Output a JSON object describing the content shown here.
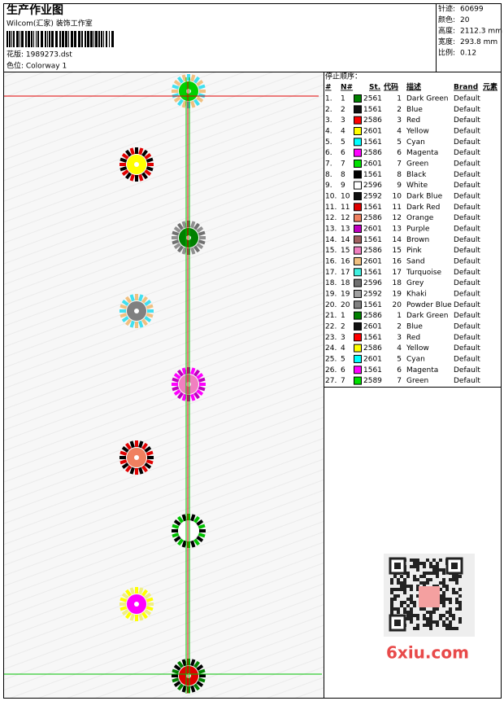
{
  "header": {
    "title": "生产作业图",
    "company": "Wilcom(汇家) 装饰工作室",
    "design_file": "花版:  1989273.dst",
    "colorway": "色位:  Colorway 1"
  },
  "stats": [
    {
      "label": "针迹:",
      "value": "60699"
    },
    {
      "label": "颜色:",
      "value": "20"
    },
    {
      "label": "高度:",
      "value": "2112.3 mm"
    },
    {
      "label": "宽度:",
      "value": "293.8 mm"
    },
    {
      "label": "比例:",
      "value": "0.12"
    }
  ],
  "table": {
    "title": "停止顺序：",
    "headers": [
      "#",
      "N#",
      "St.",
      "代码",
      "描述",
      "Brand",
      "元素"
    ],
    "rows": [
      {
        "index": "1.",
        "needle": "1",
        "color": "#008000",
        "stitch": "2561",
        "code": "1",
        "description": "Dark Green",
        "brand": "Default"
      },
      {
        "index": "2.",
        "needle": "2",
        "color": "#111111",
        "stitch": "1561",
        "code": "2",
        "description": "Blue",
        "brand": "Default"
      },
      {
        "index": "3.",
        "needle": "3",
        "color": "#ff0000",
        "stitch": "2586",
        "code": "3",
        "description": "Red",
        "brand": "Default"
      },
      {
        "index": "4.",
        "needle": "4",
        "color": "#ffff00",
        "stitch": "2601",
        "code": "4",
        "description": "Yellow",
        "brand": "Default"
      },
      {
        "index": "5.",
        "needle": "5",
        "color": "#00ffff",
        "stitch": "1561",
        "code": "5",
        "description": "Cyan",
        "brand": "Default"
      },
      {
        "index": "6.",
        "needle": "6",
        "color": "#ff00ff",
        "stitch": "2586",
        "code": "6",
        "description": "Magenta",
        "brand": "Default"
      },
      {
        "index": "7.",
        "needle": "7",
        "color": "#00e000",
        "stitch": "2601",
        "code": "7",
        "description": "Green",
        "brand": "Default"
      },
      {
        "index": "8.",
        "needle": "8",
        "color": "#000000",
        "stitch": "1561",
        "code": "8",
        "description": "Black",
        "brand": "Default"
      },
      {
        "index": "9.",
        "needle": "9",
        "color": "#ffffff",
        "stitch": "2596",
        "code": "9",
        "description": "White",
        "brand": "Default"
      },
      {
        "index": "10.",
        "needle": "10",
        "color": "#101010",
        "stitch": "2592",
        "code": "10",
        "description": "Dark Blue",
        "brand": "Default"
      },
      {
        "index": "11.",
        "needle": "11",
        "color": "#e00000",
        "stitch": "1561",
        "code": "11",
        "description": "Dark Red",
        "brand": "Default"
      },
      {
        "index": "12.",
        "needle": "12",
        "color": "#f08060",
        "stitch": "2586",
        "code": "12",
        "description": "Orange",
        "brand": "Default"
      },
      {
        "index": "13.",
        "needle": "13",
        "color": "#c000c0",
        "stitch": "2601",
        "code": "13",
        "description": "Purple",
        "brand": "Default"
      },
      {
        "index": "14.",
        "needle": "14",
        "color": "#a06060",
        "stitch": "1561",
        "code": "14",
        "description": "Brown",
        "brand": "Default"
      },
      {
        "index": "15.",
        "needle": "15",
        "color": "#f080c0",
        "stitch": "2586",
        "code": "15",
        "description": "Pink",
        "brand": "Default"
      },
      {
        "index": "16.",
        "needle": "16",
        "color": "#f0c080",
        "stitch": "2601",
        "code": "16",
        "description": "Sand",
        "brand": "Default"
      },
      {
        "index": "17.",
        "needle": "17",
        "color": "#40f0e0",
        "stitch": "1561",
        "code": "17",
        "description": "Turquoise",
        "brand": "Default"
      },
      {
        "index": "18.",
        "needle": "18",
        "color": "#707070",
        "stitch": "2596",
        "code": "18",
        "description": "Grey",
        "brand": "Default"
      },
      {
        "index": "19.",
        "needle": "19",
        "color": "#a0a0a0",
        "stitch": "2592",
        "code": "19",
        "description": "Khaki",
        "brand": "Default"
      },
      {
        "index": "20.",
        "needle": "20",
        "color": "#808080",
        "stitch": "1561",
        "code": "20",
        "description": "Powder Blue",
        "brand": "Default"
      },
      {
        "index": "21.",
        "needle": "1",
        "color": "#008000",
        "stitch": "2586",
        "code": "1",
        "description": "Dark Green",
        "brand": "Default"
      },
      {
        "index": "22.",
        "needle": "2",
        "color": "#101010",
        "stitch": "2601",
        "code": "2",
        "description": "Blue",
        "brand": "Default"
      },
      {
        "index": "23.",
        "needle": "3",
        "color": "#ff0000",
        "stitch": "1561",
        "code": "3",
        "description": "Red",
        "brand": "Default"
      },
      {
        "index": "24.",
        "needle": "4",
        "color": "#ffff00",
        "stitch": "2586",
        "code": "4",
        "description": "Yellow",
        "brand": "Default"
      },
      {
        "index": "25.",
        "needle": "5",
        "color": "#00ffff",
        "stitch": "2601",
        "code": "5",
        "description": "Cyan",
        "brand": "Default"
      },
      {
        "index": "26.",
        "needle": "6",
        "color": "#ff00ff",
        "stitch": "1561",
        "code": "6",
        "description": "Magenta",
        "brand": "Default"
      },
      {
        "index": "27.",
        "needle": "7",
        "color": "#00e000",
        "stitch": "2589",
        "code": "7",
        "description": "Green",
        "brand": "Default"
      }
    ]
  },
  "watermark": {
    "text": "6xiu.com"
  }
}
